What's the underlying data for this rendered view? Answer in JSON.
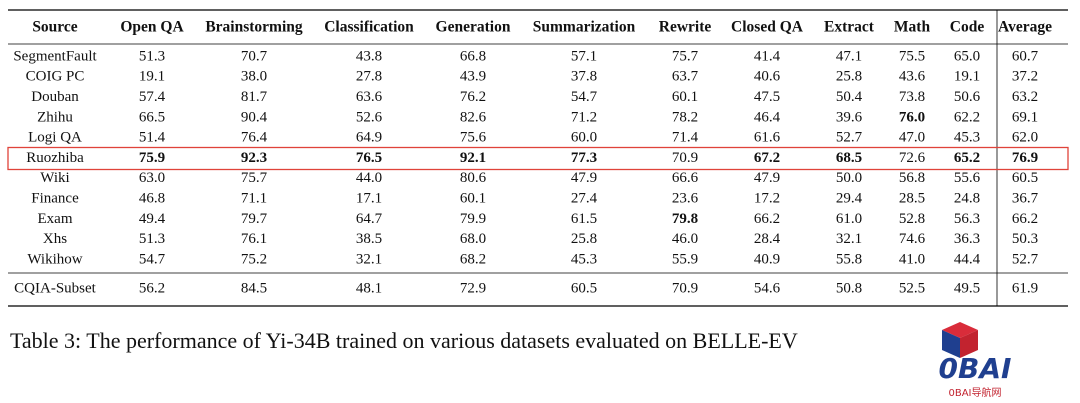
{
  "table": {
    "header": [
      "Source",
      "Open QA",
      "Brainstorming",
      "Classification",
      "Generation",
      "Summarization",
      "Rewrite",
      "Closed QA",
      "Extract",
      "Math",
      "Code",
      "Average"
    ],
    "rows": [
      [
        "SegmentFault",
        "51.3",
        "70.7",
        "43.8",
        "66.8",
        "57.1",
        "75.7",
        "41.4",
        "47.1",
        "75.5",
        "65.0",
        "60.7"
      ],
      [
        "COIG PC",
        "19.1",
        "38.0",
        "27.8",
        "43.9",
        "37.8",
        "63.7",
        "40.6",
        "25.8",
        "43.6",
        "19.1",
        "37.2"
      ],
      [
        "Douban",
        "57.4",
        "81.7",
        "63.6",
        "76.2",
        "54.7",
        "60.1",
        "47.5",
        "50.4",
        "73.8",
        "50.6",
        "63.2"
      ],
      [
        "Zhihu",
        "66.5",
        "90.4",
        "52.6",
        "82.6",
        "71.2",
        "78.2",
        "46.4",
        "39.6",
        "76.0",
        "62.2",
        "69.1"
      ],
      [
        "Logi QA",
        "51.4",
        "76.4",
        "64.9",
        "75.6",
        "60.0",
        "71.4",
        "61.6",
        "52.7",
        "47.0",
        "45.3",
        "62.0"
      ],
      [
        "Ruozhiba",
        "75.9",
        "92.3",
        "76.5",
        "92.1",
        "77.3",
        "70.9",
        "67.2",
        "68.5",
        "72.6",
        "65.2",
        "76.9"
      ],
      [
        "Wiki",
        "63.0",
        "75.7",
        "44.0",
        "80.6",
        "47.9",
        "66.6",
        "47.9",
        "50.0",
        "56.8",
        "55.6",
        "60.5"
      ],
      [
        "Finance",
        "46.8",
        "71.1",
        "17.1",
        "60.1",
        "27.4",
        "23.6",
        "17.2",
        "29.4",
        "28.5",
        "24.8",
        "36.7"
      ],
      [
        "Exam",
        "49.4",
        "79.7",
        "64.7",
        "79.9",
        "61.5",
        "79.8",
        "66.2",
        "61.0",
        "52.8",
        "56.3",
        "66.2"
      ],
      [
        "Xhs",
        "51.3",
        "76.1",
        "38.5",
        "68.0",
        "25.8",
        "46.0",
        "28.4",
        "32.1",
        "74.6",
        "36.3",
        "50.3"
      ],
      [
        "Wikihow",
        "54.7",
        "75.2",
        "32.1",
        "68.2",
        "45.3",
        "55.9",
        "40.9",
        "55.8",
        "41.0",
        "44.4",
        "52.7"
      ]
    ],
    "summary_row": [
      "CQIA-Subset",
      "56.2",
      "84.5",
      "48.1",
      "72.9",
      "60.5",
      "70.9",
      "54.6",
      "50.8",
      "52.5",
      "49.5",
      "61.9"
    ],
    "bold": [
      [
        3,
        9
      ],
      [
        5,
        1
      ],
      [
        5,
        2
      ],
      [
        5,
        3
      ],
      [
        5,
        4
      ],
      [
        5,
        5
      ],
      [
        5,
        7
      ],
      [
        5,
        8
      ],
      [
        5,
        10
      ],
      [
        5,
        11
      ],
      [
        8,
        6
      ]
    ],
    "highlight_row": 5
  },
  "caption": "Table 3: The performance of Yi-34B trained on various datasets evaluated on BELLE-EV",
  "logo": {
    "name": "0BAI",
    "subtitle": "0BAI导航网"
  }
}
